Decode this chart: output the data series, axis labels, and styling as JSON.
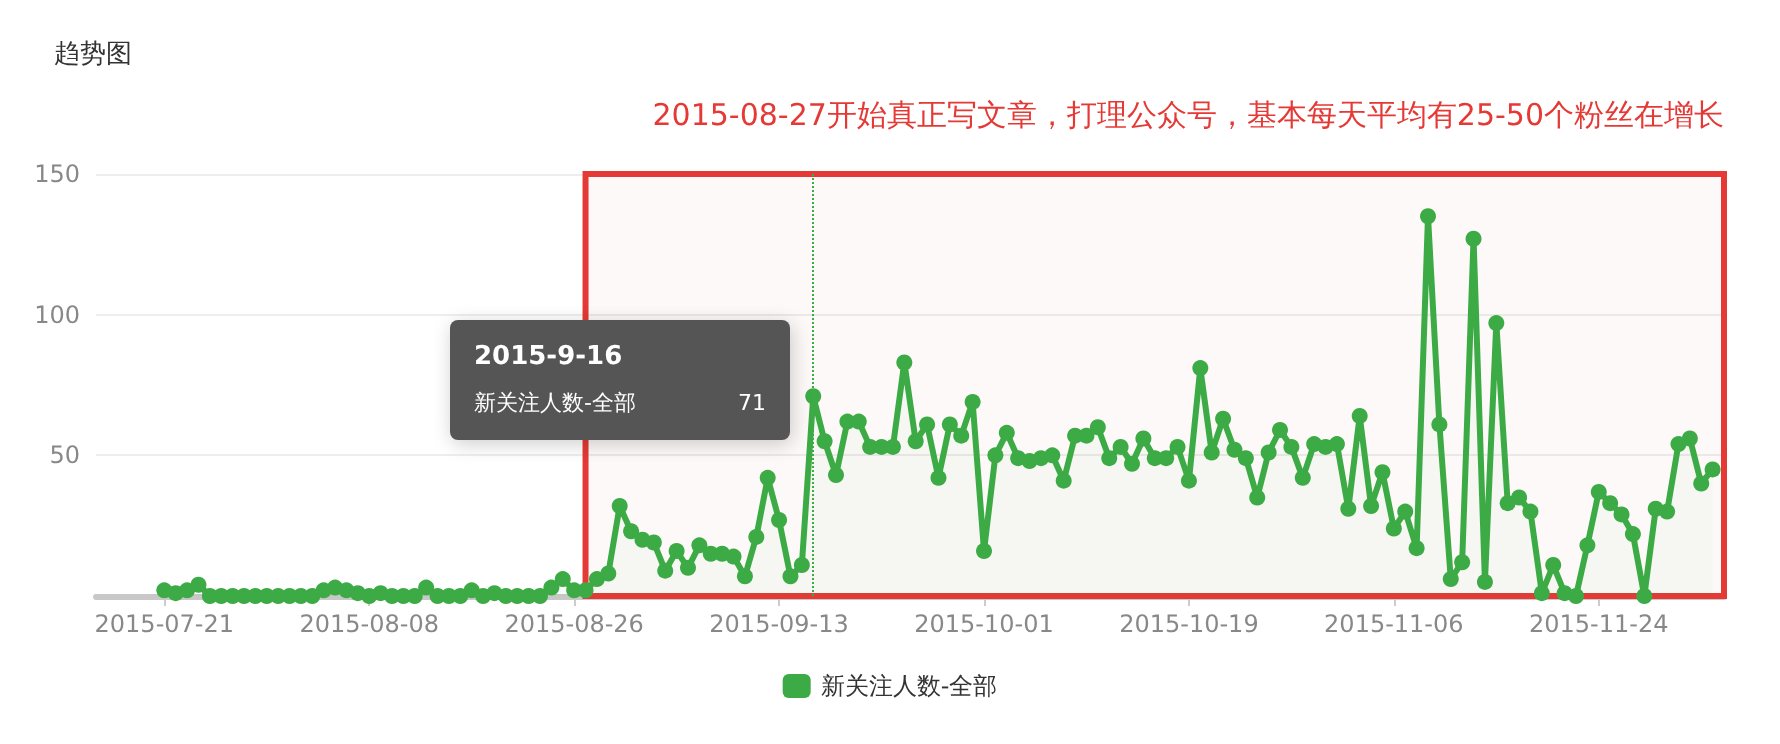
{
  "chart_data": {
    "type": "area",
    "title": "趋势图",
    "x": [
      "2015-07-21",
      "2015-07-22",
      "2015-07-23",
      "2015-07-24",
      "2015-07-25",
      "2015-07-26",
      "2015-07-27",
      "2015-07-28",
      "2015-07-29",
      "2015-07-30",
      "2015-07-31",
      "2015-08-01",
      "2015-08-02",
      "2015-08-03",
      "2015-08-04",
      "2015-08-05",
      "2015-08-06",
      "2015-08-07",
      "2015-08-08",
      "2015-08-09",
      "2015-08-10",
      "2015-08-11",
      "2015-08-12",
      "2015-08-13",
      "2015-08-14",
      "2015-08-15",
      "2015-08-16",
      "2015-08-17",
      "2015-08-18",
      "2015-08-19",
      "2015-08-20",
      "2015-08-21",
      "2015-08-22",
      "2015-08-23",
      "2015-08-24",
      "2015-08-25",
      "2015-08-26",
      "2015-08-27",
      "2015-08-28",
      "2015-08-29",
      "2015-08-30",
      "2015-08-31",
      "2015-09-01",
      "2015-09-02",
      "2015-09-03",
      "2015-09-04",
      "2015-09-05",
      "2015-09-06",
      "2015-09-07",
      "2015-09-08",
      "2015-09-09",
      "2015-09-10",
      "2015-09-11",
      "2015-09-12",
      "2015-09-13",
      "2015-09-14",
      "2015-09-15",
      "2015-09-16",
      "2015-09-17",
      "2015-09-18",
      "2015-09-19",
      "2015-09-20",
      "2015-09-21",
      "2015-09-22",
      "2015-09-23",
      "2015-09-24",
      "2015-09-25",
      "2015-09-26",
      "2015-09-27",
      "2015-09-28",
      "2015-09-29",
      "2015-09-30",
      "2015-10-01",
      "2015-10-02",
      "2015-10-03",
      "2015-10-04",
      "2015-10-05",
      "2015-10-06",
      "2015-10-07",
      "2015-10-08",
      "2015-10-09",
      "2015-10-10",
      "2015-10-11",
      "2015-10-12",
      "2015-10-13",
      "2015-10-14",
      "2015-10-15",
      "2015-10-16",
      "2015-10-17",
      "2015-10-18",
      "2015-10-19",
      "2015-10-20",
      "2015-10-21",
      "2015-10-22",
      "2015-10-23",
      "2015-10-24",
      "2015-10-25",
      "2015-10-26",
      "2015-10-27",
      "2015-10-28",
      "2015-10-29",
      "2015-10-30",
      "2015-10-31",
      "2015-11-01",
      "2015-11-02",
      "2015-11-03",
      "2015-11-04",
      "2015-11-05",
      "2015-11-06",
      "2015-11-07",
      "2015-11-08",
      "2015-11-09",
      "2015-11-10",
      "2015-11-11",
      "2015-11-12",
      "2015-11-13",
      "2015-11-14",
      "2015-11-15",
      "2015-11-16",
      "2015-11-17",
      "2015-11-18",
      "2015-11-19",
      "2015-11-20",
      "2015-11-21",
      "2015-11-22",
      "2015-11-23",
      "2015-11-24",
      "2015-11-25",
      "2015-11-26",
      "2015-11-27",
      "2015-11-28",
      "2015-11-29",
      "2015-11-30",
      "2015-12-01",
      "2015-12-02",
      "2015-12-03",
      "2015-12-04"
    ],
    "series": [
      {
        "name": "新关注人数-全部",
        "color": "#3dab45",
        "values": [
          2,
          1,
          2,
          4,
          0,
          0,
          0,
          0,
          0,
          0,
          0,
          0,
          0,
          0,
          2,
          3,
          2,
          1,
          0,
          1,
          0,
          0,
          0,
          3,
          0,
          0,
          0,
          2,
          0,
          1,
          0,
          0,
          0,
          0,
          3,
          6,
          2,
          2,
          6,
          8,
          32,
          23,
          20,
          19,
          9,
          16,
          10,
          18,
          15,
          15,
          14,
          7,
          21,
          42,
          27,
          7,
          11,
          71,
          55,
          43,
          62,
          62,
          53,
          53,
          53,
          83,
          55,
          61,
          42,
          61,
          57,
          69,
          16,
          50,
          58,
          49,
          48,
          49,
          50,
          41,
          57,
          57,
          60,
          49,
          53,
          47,
          56,
          49,
          49,
          53,
          41,
          81,
          51,
          63,
          52,
          49,
          35,
          51,
          59,
          53,
          42,
          54,
          53,
          54,
          31,
          64,
          32,
          44,
          24,
          30,
          17,
          135,
          61,
          6,
          12,
          127,
          5,
          97,
          33,
          35,
          30,
          1,
          11,
          1,
          0,
          18,
          37,
          33,
          29,
          22,
          0,
          31,
          30,
          54,
          56,
          40,
          45
        ]
      }
    ],
    "xlim": [
      "2015-07-15",
      "2015-12-05"
    ],
    "xticks": [
      "2015-07-21",
      "2015-08-08",
      "2015-08-26",
      "2015-09-13",
      "2015-10-01",
      "2015-10-19",
      "2015-11-06",
      "2015-11-24"
    ],
    "ylim": [
      0,
      150
    ],
    "yticks": [
      50,
      100,
      150
    ],
    "grid": "y",
    "legend": "bottom",
    "marker": "circle",
    "line_style": "solid",
    "ref_lines": [
      {
        "axis": "x",
        "value": "2015-09-16",
        "color": "#3dab45",
        "line_style": "dotted"
      }
    ],
    "bands": [
      {
        "axis": "x",
        "from": "2015-08-27",
        "to": "2015-12-05",
        "label": "2015-08-27开始真正写文章，打理公众号，基本每天平均有25-50个粉丝在增长",
        "color": "#e53935"
      }
    ],
    "annotations": [
      "2015-9-16",
      {
        "text": "71",
        "x": "2015-09-16",
        "y": 71
      }
    ]
  }
}
